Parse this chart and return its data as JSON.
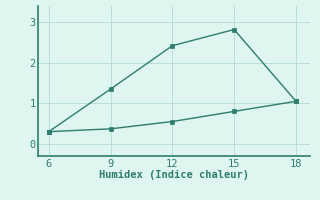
{
  "x": [
    6,
    9,
    12,
    15,
    18
  ],
  "upper": [
    0.3,
    1.35,
    2.42,
    2.82,
    1.05
  ],
  "lower": [
    0.3,
    0.37,
    0.55,
    0.8,
    1.05
  ],
  "line_color": "#2e7d6e",
  "bg_color": "#dff5f0",
  "xlabel": "Humidex (Indice chaleur)",
  "xlabel_fontsize": 7.5,
  "xticks": [
    6,
    9,
    12,
    15,
    18
  ],
  "yticks": [
    0,
    1,
    2,
    3
  ],
  "ylim": [
    -0.3,
    3.4
  ],
  "xlim": [
    5.5,
    18.7
  ],
  "grid_color": "#b8ddd7",
  "markersize": 2.5,
  "linewidth": 1.0,
  "tick_fontsize": 7.5,
  "spine_color": "#2e7d6e"
}
